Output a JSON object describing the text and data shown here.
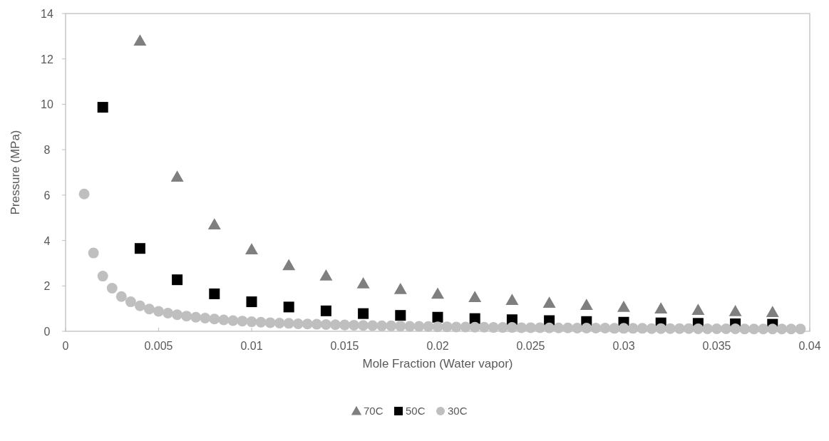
{
  "chart_data": {
    "type": "scatter",
    "xlabel": "Mole Fraction (Water vapor)",
    "ylabel": "Pressure (MPa)",
    "xlim": [
      0,
      0.04
    ],
    "xticks": [
      0,
      0.005,
      0.01,
      0.015,
      0.02,
      0.025,
      0.03,
      0.035,
      0.04
    ],
    "ylim": [
      0,
      14
    ],
    "yticks": [
      0,
      2,
      4,
      6,
      8,
      10,
      12,
      14
    ],
    "legend": "bottom",
    "series": [
      {
        "name": "70C",
        "color": "#7f7f7f",
        "marker": "triangle",
        "x": [
          0.004,
          0.006,
          0.008,
          0.01,
          0.012,
          0.014,
          0.016,
          0.018,
          0.02,
          0.022,
          0.024,
          0.026,
          0.028,
          0.03,
          0.032,
          0.034,
          0.036,
          0.038
        ],
        "values": [
          12.8,
          6.8,
          4.7,
          3.6,
          2.9,
          2.45,
          2.1,
          1.85,
          1.65,
          1.5,
          1.37,
          1.25,
          1.15,
          1.07,
          1.0,
          0.93,
          0.88,
          0.84
        ]
      },
      {
        "name": "50C",
        "color": "#000000",
        "marker": "square",
        "x": [
          0.002,
          0.004,
          0.006,
          0.008,
          0.01,
          0.012,
          0.014,
          0.016,
          0.018,
          0.02,
          0.022,
          0.024,
          0.026,
          0.028,
          0.03,
          0.032,
          0.034,
          0.036,
          0.038
        ],
        "values": [
          9.87,
          3.65,
          2.27,
          1.65,
          1.3,
          1.07,
          0.9,
          0.78,
          0.7,
          0.62,
          0.56,
          0.51,
          0.47,
          0.43,
          0.4,
          0.37,
          0.35,
          0.33,
          0.31
        ]
      },
      {
        "name": "30C",
        "color": "#bfbfbf",
        "marker": "circle",
        "x": [
          0.001,
          0.0015,
          0.002,
          0.0025,
          0.003,
          0.0035,
          0.004,
          0.0045,
          0.005,
          0.0055,
          0.006,
          0.0065,
          0.007,
          0.0075,
          0.008,
          0.0085,
          0.009,
          0.0095,
          0.01,
          0.0105,
          0.011,
          0.0115,
          0.012,
          0.0125,
          0.013,
          0.0135,
          0.014,
          0.0145,
          0.015,
          0.0155,
          0.016,
          0.0165,
          0.017,
          0.0175,
          0.018,
          0.0185,
          0.019,
          0.0195,
          0.02,
          0.0205,
          0.021,
          0.0215,
          0.022,
          0.0225,
          0.023,
          0.0235,
          0.024,
          0.0245,
          0.025,
          0.0255,
          0.026,
          0.0265,
          0.027,
          0.0275,
          0.028,
          0.0285,
          0.029,
          0.0295,
          0.03,
          0.0305,
          0.031,
          0.0315,
          0.032,
          0.0325,
          0.033,
          0.0335,
          0.034,
          0.0345,
          0.035,
          0.0355,
          0.036,
          0.0365,
          0.037,
          0.0375,
          0.038,
          0.0385,
          0.039,
          0.0395
        ],
        "values": [
          6.05,
          3.45,
          2.43,
          1.9,
          1.53,
          1.3,
          1.12,
          0.98,
          0.88,
          0.8,
          0.73,
          0.67,
          0.62,
          0.58,
          0.54,
          0.5,
          0.47,
          0.45,
          0.42,
          0.4,
          0.38,
          0.36,
          0.35,
          0.33,
          0.32,
          0.31,
          0.3,
          0.29,
          0.28,
          0.27,
          0.26,
          0.25,
          0.24,
          0.24,
          0.23,
          0.22,
          0.22,
          0.21,
          0.2,
          0.2,
          0.19,
          0.19,
          0.18,
          0.18,
          0.17,
          0.17,
          0.17,
          0.16,
          0.16,
          0.16,
          0.15,
          0.15,
          0.15,
          0.14,
          0.14,
          0.14,
          0.14,
          0.13,
          0.13,
          0.13,
          0.13,
          0.12,
          0.12,
          0.12,
          0.12,
          0.12,
          0.11,
          0.11,
          0.11,
          0.11,
          0.11,
          0.1,
          0.1,
          0.1,
          0.1,
          0.1,
          0.1,
          0.1
        ]
      }
    ]
  }
}
